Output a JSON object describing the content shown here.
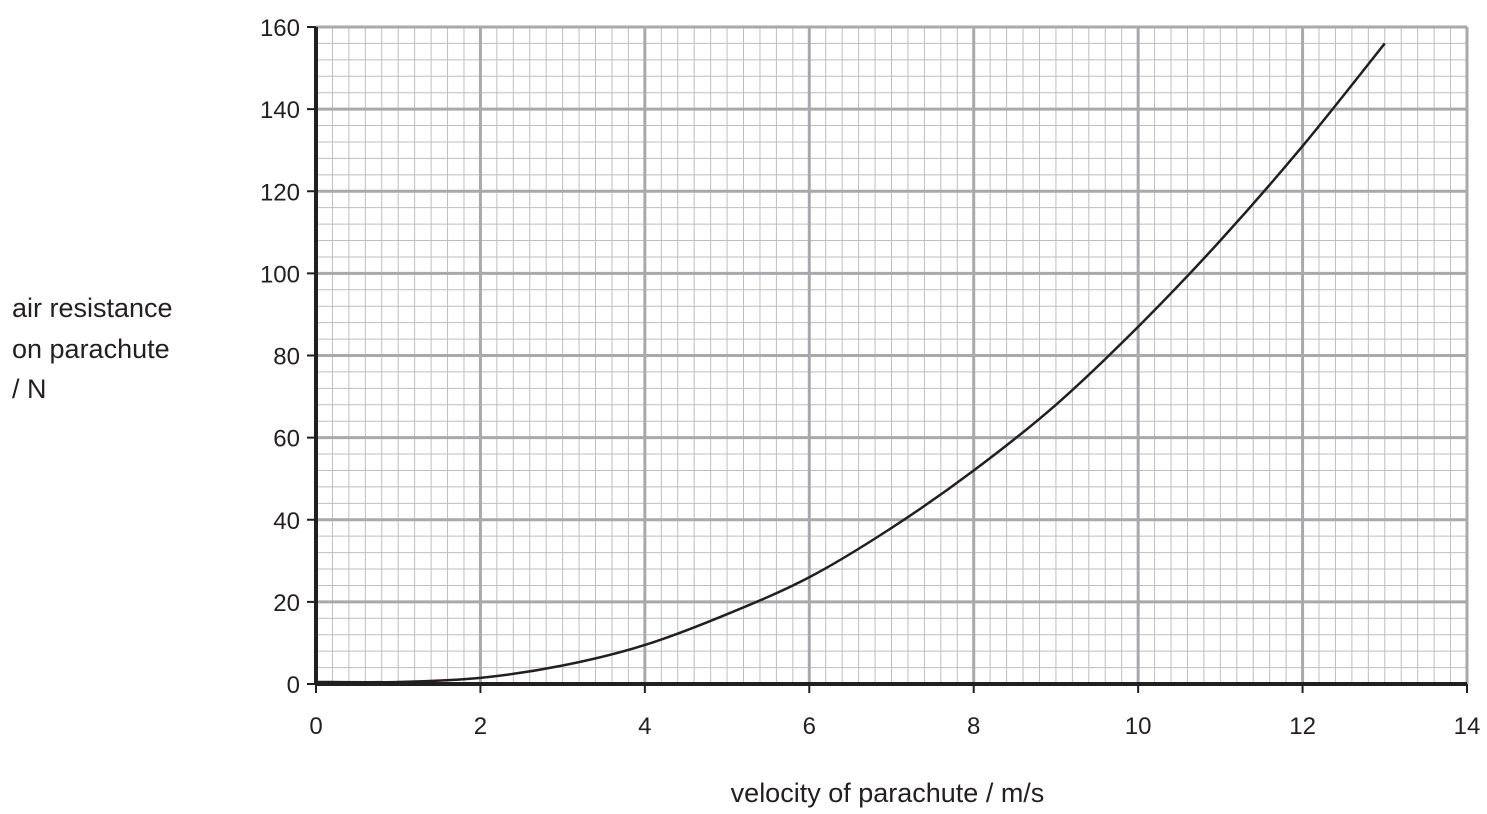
{
  "chart_data": {
    "type": "line",
    "xlabel": "velocity of parachute / m/s",
    "ylabel_lines": [
      "air resistance",
      "on parachute",
      "/ N"
    ],
    "xlim": [
      0,
      14
    ],
    "ylim": [
      0,
      160
    ],
    "x_ticks": [
      "0",
      "2",
      "4",
      "6",
      "8",
      "10",
      "12",
      "14"
    ],
    "y_ticks": [
      "0",
      "20",
      "40",
      "60",
      "80",
      "100",
      "120",
      "140",
      "160"
    ],
    "grid": true,
    "series": [
      {
        "x": [
          0,
          1,
          2,
          3,
          4,
          5,
          6,
          7,
          8,
          9,
          10,
          11,
          12,
          13
        ],
        "y": [
          0.5,
          0.5,
          1.5,
          4.5,
          9.5,
          17,
          26,
          38,
          52,
          68,
          87,
          108,
          131,
          156
        ]
      }
    ]
  }
}
